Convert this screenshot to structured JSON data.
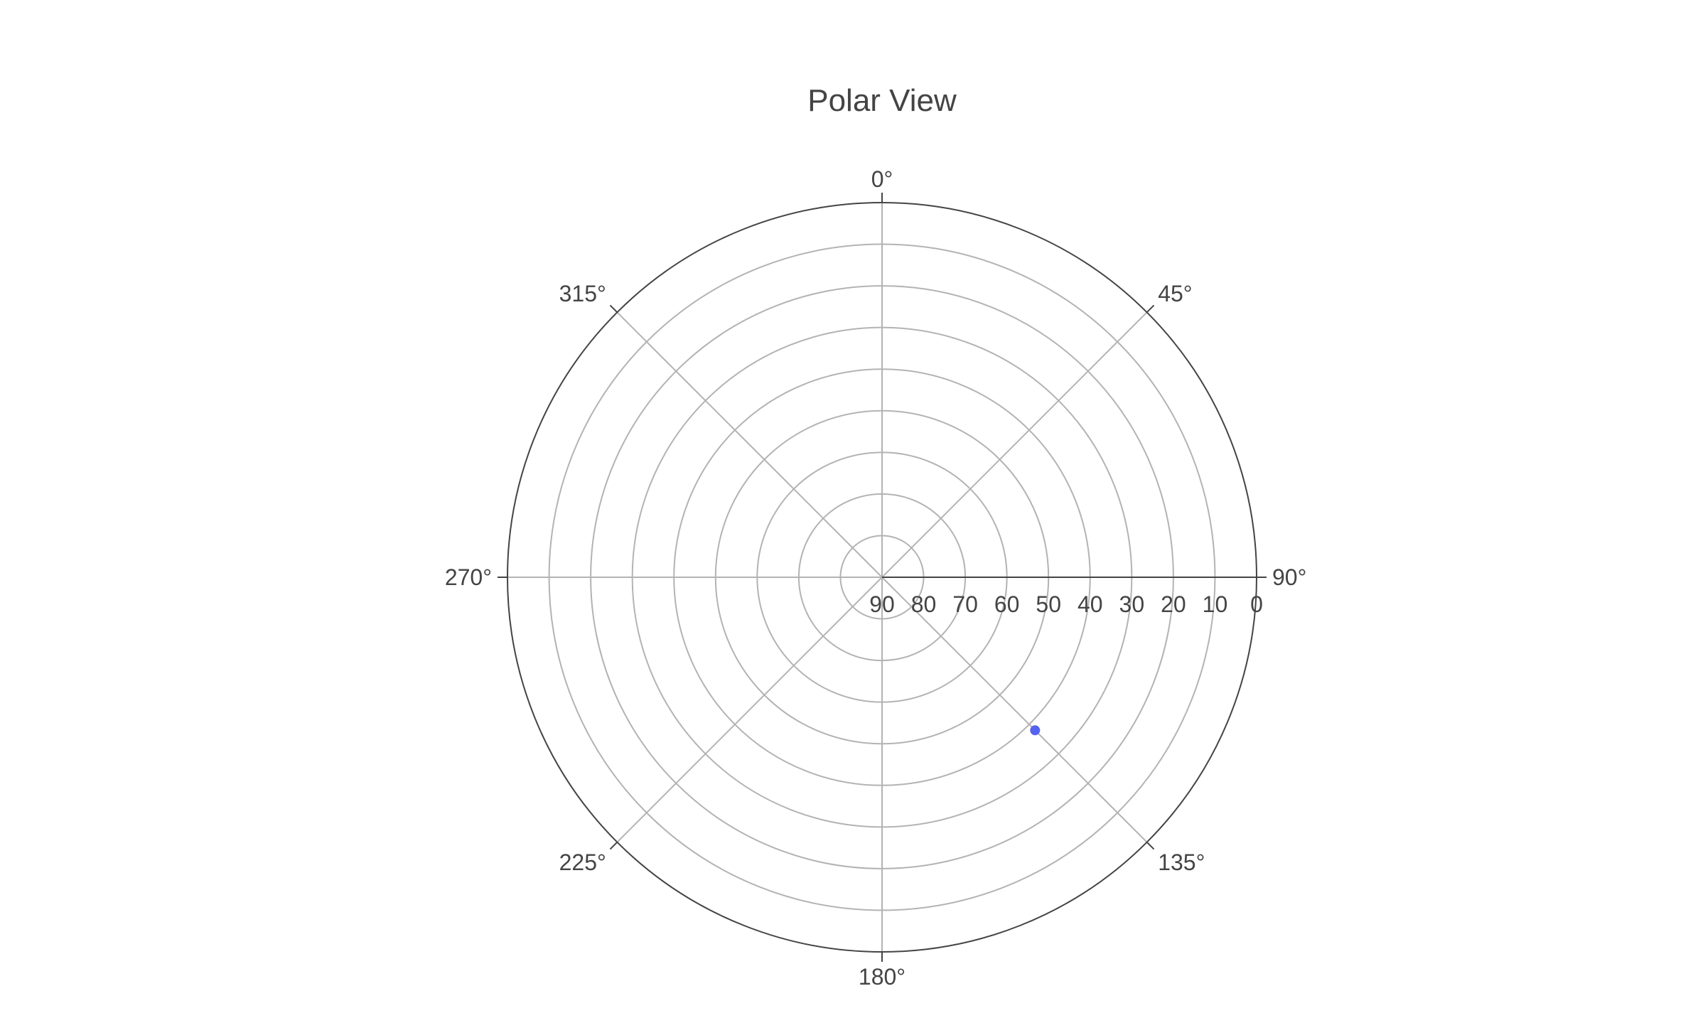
{
  "chart_data": {
    "type": "scatter",
    "subtype": "polar",
    "title": "Polar View",
    "angular_axis": {
      "direction": "clockwise",
      "rotation": "0° at top",
      "tick_values": [
        0,
        45,
        90,
        135,
        180,
        225,
        270,
        315
      ],
      "tick_labels": [
        "0°",
        "45°",
        "90°",
        "135°",
        "180°",
        "225°",
        "270°",
        "315°"
      ]
    },
    "radial_axis": {
      "range": [
        90,
        0
      ],
      "reversed": true,
      "tick_values": [
        90,
        80,
        70,
        60,
        50,
        40,
        30,
        20,
        10,
        0
      ],
      "tick_labels": [
        "90",
        "80",
        "70",
        "60",
        "50",
        "40",
        "30",
        "20",
        "10",
        "0"
      ],
      "axis_angle": 90
    },
    "grid": true,
    "series": [
      {
        "points": [
          {
            "theta": 135,
            "r": 38
          }
        ],
        "color": "#5563f0"
      }
    ],
    "colors": {
      "grid": "#b3b3b3",
      "axis": "#444444",
      "text": "#444444"
    }
  }
}
